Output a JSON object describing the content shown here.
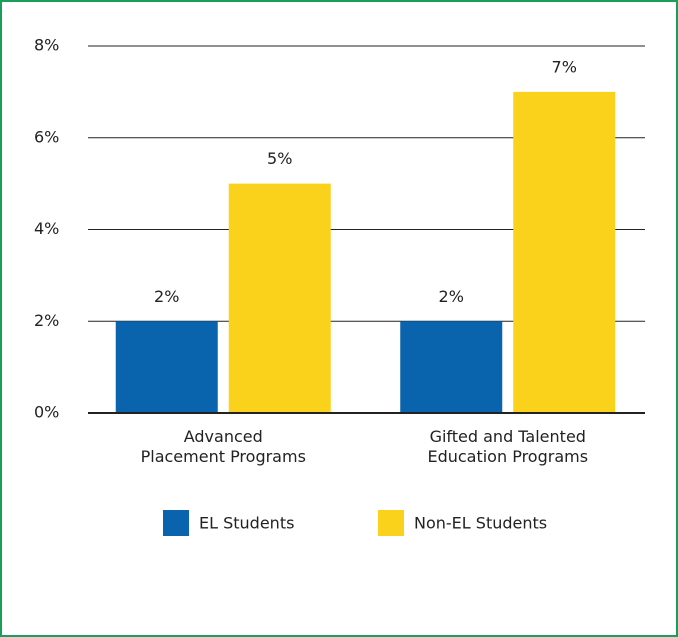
{
  "chart_data": {
    "type": "bar",
    "categories": [
      "Advanced\nPlacement Programs",
      "Gifted and Talented\nEducation Programs"
    ],
    "series": [
      {
        "name": "EL Students",
        "color": "#0a63ad",
        "values": [
          2,
          2
        ],
        "value_labels": [
          "2%",
          "2%"
        ]
      },
      {
        "name": "Non-EL Students",
        "color": "#fad21c",
        "values": [
          5,
          7
        ],
        "value_labels": [
          "5%",
          "7%"
        ]
      }
    ],
    "ylim": [
      0,
      8
    ],
    "yticks": [
      {
        "value": 0,
        "label": "0%"
      },
      {
        "value": 2,
        "label": "2%"
      },
      {
        "value": 4,
        "label": "4%"
      },
      {
        "value": 6,
        "label": "6%"
      },
      {
        "value": 8,
        "label": "8%"
      }
    ],
    "grid": true
  }
}
